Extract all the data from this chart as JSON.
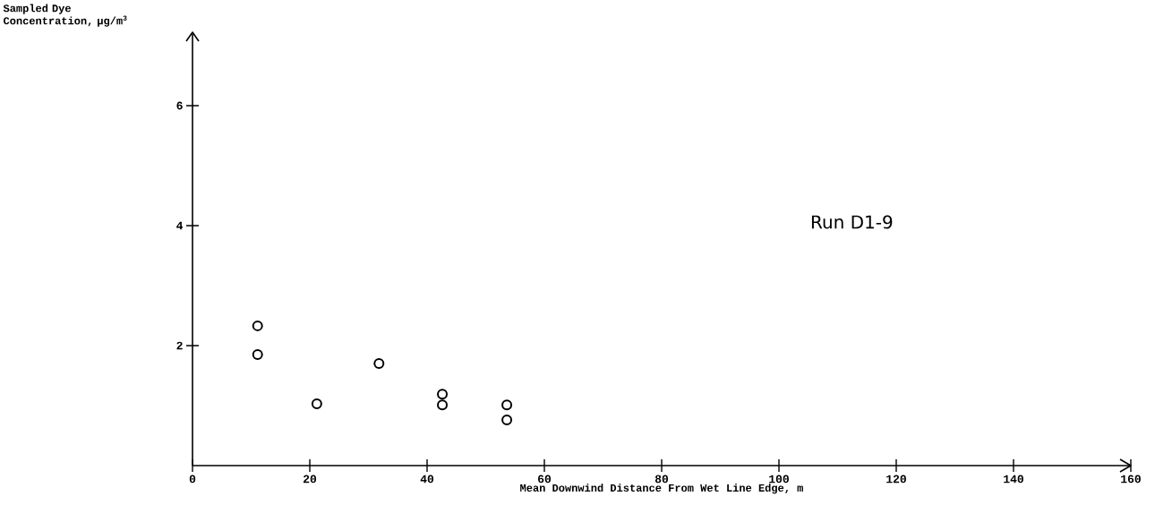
{
  "chart_data": {
    "type": "scatter",
    "xlabel": "Mean Downwind Distance From Wet Line Edge, m",
    "ylabel": "Sampled Dye Concentration, µg/m$^{3}$",
    "annotations": [
      "Run D1-9"
    ],
    "x": [
      11.1,
      11.1,
      21.2,
      31.8,
      42.6,
      42.6,
      53.6,
      53.6
    ],
    "values": [
      2.33,
      1.85,
      1.03,
      1.7,
      1.19,
      1.01,
      1.01,
      0.76
    ],
    "color": "#000000",
    "marker": "circle",
    "xlim": [
      0,
      160
    ],
    "xticks": [
      0,
      20,
      40,
      60,
      80,
      100,
      120,
      140,
      160
    ],
    "ylim": [
      0,
      7
    ],
    "yticks": [
      2,
      4,
      6
    ]
  }
}
